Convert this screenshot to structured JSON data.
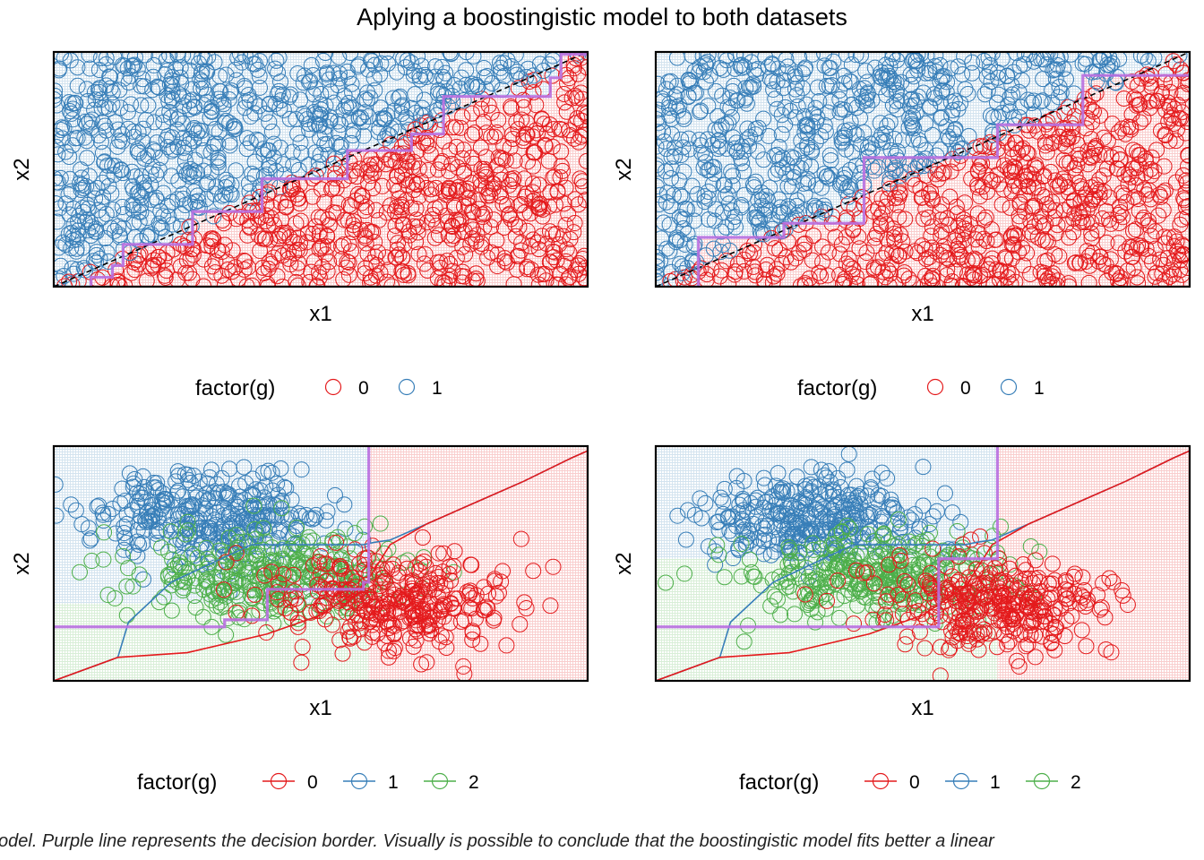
{
  "figure": {
    "title": "Aplying a boostingistic model to both datasets",
    "caption": "odel. Purple line represents the decision border. Visually is possible to conclude that the boostingistic model fits better a linear"
  },
  "colors": {
    "class0": "#E41A1C",
    "class1": "#377EB8",
    "class2": "#4DAF4A",
    "border": "#B86FE0",
    "truth": "#000000"
  },
  "chart_data": [
    {
      "type": "scatter",
      "panel": "top-left",
      "xlabel": "x1",
      "ylabel": "x2",
      "xlim": [
        0,
        1
      ],
      "ylim": [
        0,
        1
      ],
      "legend_title": "factor(g)",
      "legend_position": "bottom",
      "legend": [
        "0",
        "1"
      ],
      "legend_style": "point",
      "points_per_class": 700,
      "true_boundary": [
        [
          0,
          0
        ],
        [
          1,
          1
        ]
      ],
      "decision_border": [
        [
          0.07,
          0
        ],
        [
          0.07,
          0.04
        ],
        [
          0.11,
          0.04
        ],
        [
          0.11,
          0.09
        ],
        [
          0.13,
          0.09
        ],
        [
          0.13,
          0.18
        ],
        [
          0.26,
          0.18
        ],
        [
          0.26,
          0.32
        ],
        [
          0.39,
          0.32
        ],
        [
          0.39,
          0.46
        ],
        [
          0.55,
          0.46
        ],
        [
          0.55,
          0.58
        ],
        [
          0.67,
          0.58
        ],
        [
          0.67,
          0.65
        ],
        [
          0.73,
          0.65
        ],
        [
          0.73,
          0.81
        ],
        [
          0.93,
          0.81
        ],
        [
          0.93,
          0.89
        ],
        [
          0.95,
          0.89
        ],
        [
          0.95,
          0.99
        ],
        [
          1,
          0.99
        ]
      ]
    },
    {
      "type": "scatter",
      "panel": "top-right",
      "xlabel": "x1",
      "ylabel": "x2",
      "xlim": [
        0,
        1
      ],
      "ylim": [
        0,
        1
      ],
      "legend_title": "factor(g)",
      "legend_position": "bottom",
      "legend": [
        "0",
        "1"
      ],
      "legend_style": "point",
      "points_per_class": 700,
      "true_boundary": [
        [
          0,
          0
        ],
        [
          1,
          1
        ]
      ],
      "decision_border": [
        [
          0.08,
          0
        ],
        [
          0.08,
          0.21
        ],
        [
          0.24,
          0.21
        ],
        [
          0.24,
          0.27
        ],
        [
          0.39,
          0.27
        ],
        [
          0.39,
          0.55
        ],
        [
          0.64,
          0.55
        ],
        [
          0.64,
          0.69
        ],
        [
          0.8,
          0.69
        ],
        [
          0.8,
          0.9
        ],
        [
          1,
          0.9
        ]
      ]
    },
    {
      "type": "scatter",
      "panel": "bottom-left",
      "xlabel": "x1",
      "ylabel": "x2",
      "xlim": [
        0,
        1
      ],
      "ylim": [
        0,
        1
      ],
      "legend_title": "factor(g)",
      "legend_position": "bottom",
      "legend": [
        "0",
        "1",
        "2"
      ],
      "legend_style": "line-point",
      "points_per_class": 330,
      "clusters": [
        {
          "class": "1",
          "center": [
            0.3,
            0.7
          ],
          "spread": [
            0.11,
            0.1
          ]
        },
        {
          "class": "2",
          "center": [
            0.4,
            0.45
          ],
          "spread": [
            0.12,
            0.09
          ]
        },
        {
          "class": "0",
          "center": [
            0.63,
            0.33
          ],
          "spread": [
            0.11,
            0.1
          ]
        }
      ],
      "regions": [
        {
          "class": "1",
          "x": [
            0,
            0.59
          ],
          "y": [
            0.33,
            1
          ]
        },
        {
          "class": "2",
          "x": [
            0,
            0.59
          ],
          "y": [
            0,
            0.33
          ]
        },
        {
          "class": "0",
          "x": [
            0.59,
            1
          ],
          "y": [
            0,
            1
          ]
        }
      ],
      "true_boundaries": [
        {
          "classes": [
            "0",
            "1"
          ],
          "color": "#377EB8",
          "points": [
            [
              0,
              0
            ],
            [
              0.12,
              0.1
            ],
            [
              0.14,
              0.25
            ],
            [
              0.22,
              0.42
            ],
            [
              0.37,
              0.58
            ],
            [
              0.58,
              0.58
            ],
            [
              0.6,
              0.59
            ],
            [
              0.63,
              0.6
            ],
            [
              0.7,
              0.67
            ],
            [
              0.8,
              0.77
            ],
            [
              0.88,
              0.85
            ],
            [
              0.97,
              0.95
            ],
            [
              1,
              0.98
            ]
          ]
        },
        {
          "classes": [
            "0",
            "2"
          ],
          "color": "#E41A1C",
          "points": [
            [
              0,
              0
            ],
            [
              0.12,
              0.1
            ],
            [
              0.25,
              0.12
            ],
            [
              0.4,
              0.2
            ],
            [
              0.5,
              0.28
            ],
            [
              0.58,
              0.4
            ],
            [
              0.63,
              0.58
            ],
            [
              0.7,
              0.67
            ],
            [
              0.8,
              0.77
            ],
            [
              0.88,
              0.85
            ],
            [
              0.97,
              0.95
            ],
            [
              1,
              0.98
            ]
          ]
        }
      ],
      "decision_border": [
        [
          0,
          0.23
        ],
        [
          0.32,
          0.23
        ],
        [
          0.32,
          0.26
        ],
        [
          0.4,
          0.26
        ],
        [
          0.4,
          0.39
        ],
        [
          0.58,
          0.39
        ],
        [
          0.58,
          0.42
        ],
        [
          0.59,
          0.42
        ],
        [
          0.59,
          1
        ]
      ]
    },
    {
      "type": "scatter",
      "panel": "bottom-right",
      "xlabel": "x1",
      "ylabel": "x2",
      "xlim": [
        0,
        1
      ],
      "ylim": [
        0,
        1
      ],
      "legend_title": "factor(g)",
      "legend_position": "bottom",
      "legend": [
        "0",
        "1",
        "2"
      ],
      "legend_style": "line-point",
      "points_per_class": 330,
      "clusters": [
        {
          "class": "1",
          "center": [
            0.3,
            0.7
          ],
          "spread": [
            0.11,
            0.1
          ]
        },
        {
          "class": "2",
          "center": [
            0.4,
            0.45
          ],
          "spread": [
            0.12,
            0.09
          ]
        },
        {
          "class": "0",
          "center": [
            0.63,
            0.33
          ],
          "spread": [
            0.11,
            0.1
          ]
        }
      ],
      "regions": [
        {
          "class": "1",
          "x": [
            0,
            0.64
          ],
          "y": [
            0.52,
            1
          ]
        },
        {
          "class": "2",
          "x": [
            0,
            0.64
          ],
          "y": [
            0,
            0.52
          ]
        },
        {
          "class": "0",
          "x": [
            0.64,
            1
          ],
          "y": [
            0,
            1
          ]
        }
      ],
      "true_boundaries": [
        {
          "classes": [
            "0",
            "1"
          ],
          "color": "#377EB8",
          "points": [
            [
              0,
              0
            ],
            [
              0.12,
              0.1
            ],
            [
              0.14,
              0.25
            ],
            [
              0.22,
              0.42
            ],
            [
              0.37,
              0.58
            ],
            [
              0.58,
              0.58
            ],
            [
              0.6,
              0.59
            ],
            [
              0.63,
              0.6
            ],
            [
              0.7,
              0.67
            ],
            [
              0.8,
              0.77
            ],
            [
              0.88,
              0.85
            ],
            [
              0.97,
              0.95
            ],
            [
              1,
              0.98
            ]
          ]
        },
        {
          "classes": [
            "0",
            "2"
          ],
          "color": "#E41A1C",
          "points": [
            [
              0,
              0
            ],
            [
              0.12,
              0.1
            ],
            [
              0.25,
              0.12
            ],
            [
              0.4,
              0.2
            ],
            [
              0.5,
              0.28
            ],
            [
              0.58,
              0.4
            ],
            [
              0.63,
              0.58
            ],
            [
              0.7,
              0.67
            ],
            [
              0.8,
              0.77
            ],
            [
              0.88,
              0.85
            ],
            [
              0.97,
              0.95
            ],
            [
              1,
              0.98
            ]
          ]
        }
      ],
      "decision_border": [
        [
          0,
          0.23
        ],
        [
          0.53,
          0.23
        ],
        [
          0.53,
          0.52
        ],
        [
          0.62,
          0.52
        ],
        [
          0.62,
          0.52
        ],
        [
          0.64,
          0.52
        ],
        [
          0.64,
          1
        ]
      ]
    }
  ]
}
